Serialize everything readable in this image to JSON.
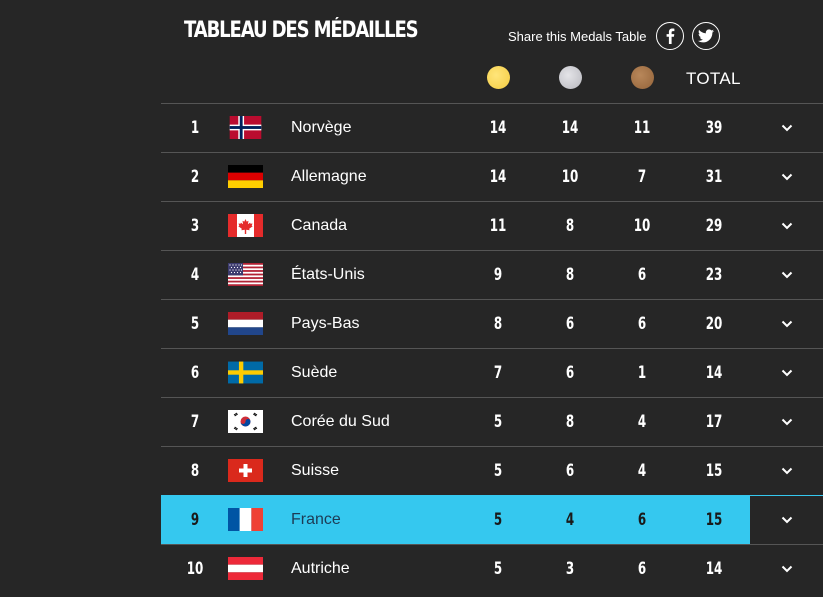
{
  "header": {
    "title": "TABLEAU DES MÉDAILLES",
    "share_label": "Share this Medals Table",
    "total_label": "TOTAL"
  },
  "colors": {
    "background": "#262626",
    "highlight": "#35c8ef",
    "gold": "#f3cc42",
    "silver": "#c0c0c5",
    "bronze": "#9c6a3e"
  },
  "rows": [
    {
      "rank": "1",
      "country": "Norvège",
      "gold": "14",
      "silver": "14",
      "bronze": "11",
      "total": "39",
      "flag": "norway"
    },
    {
      "rank": "2",
      "country": "Allemagne",
      "gold": "14",
      "silver": "10",
      "bronze": "7",
      "total": "31",
      "flag": "germany"
    },
    {
      "rank": "3",
      "country": "Canada",
      "gold": "11",
      "silver": "8",
      "bronze": "10",
      "total": "29",
      "flag": "canada"
    },
    {
      "rank": "4",
      "country": "États-Unis",
      "gold": "9",
      "silver": "8",
      "bronze": "6",
      "total": "23",
      "flag": "usa"
    },
    {
      "rank": "5",
      "country": "Pays-Bas",
      "gold": "8",
      "silver": "6",
      "bronze": "6",
      "total": "20",
      "flag": "netherlands"
    },
    {
      "rank": "6",
      "country": "Suède",
      "gold": "7",
      "silver": "6",
      "bronze": "1",
      "total": "14",
      "flag": "sweden"
    },
    {
      "rank": "7",
      "country": "Corée du Sud",
      "gold": "5",
      "silver": "8",
      "bronze": "4",
      "total": "17",
      "flag": "south-korea"
    },
    {
      "rank": "8",
      "country": "Suisse",
      "gold": "5",
      "silver": "6",
      "bronze": "4",
      "total": "15",
      "flag": "switzerland"
    },
    {
      "rank": "9",
      "country": "France",
      "gold": "5",
      "silver": "4",
      "bronze": "6",
      "total": "15",
      "flag": "france",
      "highlighted": true
    },
    {
      "rank": "10",
      "country": "Autriche",
      "gold": "5",
      "silver": "3",
      "bronze": "6",
      "total": "14",
      "flag": "austria"
    }
  ]
}
